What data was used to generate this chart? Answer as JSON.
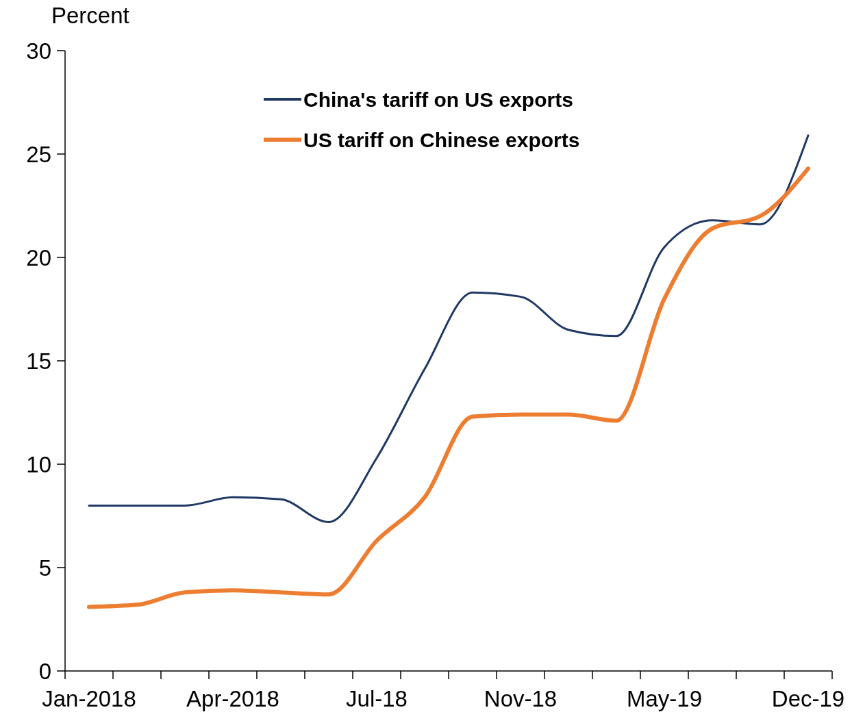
{
  "chart_data": {
    "type": "line",
    "ylabel": "Percent",
    "categories": [
      "Jan-2018",
      null,
      null,
      "Apr-2018",
      null,
      null,
      "Jul-18",
      null,
      null,
      "Nov-18",
      null,
      null,
      "May-19",
      null,
      null,
      "Dec-19"
    ],
    "series": [
      {
        "name": "China's tariff on US exports",
        "color": "#1f3864",
        "values": [
          8.0,
          8.0,
          8.0,
          8.4,
          8.3,
          7.2,
          10.3,
          14.6,
          18.3,
          18.1,
          16.5,
          16.2,
          20.5,
          21.8,
          21.6,
          25.9
        ]
      },
      {
        "name": "US tariff on Chinese exports",
        "color": "#ed7d31",
        "values": [
          3.1,
          3.2,
          3.8,
          3.9,
          3.8,
          3.7,
          6.3,
          8.4,
          12.3,
          12.4,
          12.4,
          12.1,
          18.0,
          21.4,
          22.0,
          24.3
        ]
      }
    ],
    "ylim": [
      0,
      30
    ],
    "yticks": [
      0,
      5,
      10,
      15,
      20,
      25,
      30
    ],
    "grid": false,
    "legend": "top",
    "marker": "none",
    "line_style": "solid"
  }
}
